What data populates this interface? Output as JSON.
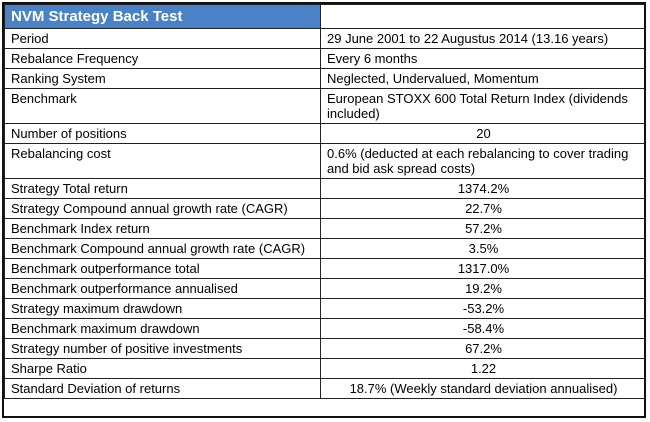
{
  "table": {
    "title": "NVM Strategy Back Test",
    "rows": [
      {
        "label": "Period",
        "value": "29 June 2001 to 22 Augustus 2014 (13.16 years)",
        "align": "left"
      },
      {
        "label": "Rebalance Frequency",
        "value": "Every 6 months",
        "align": "left"
      },
      {
        "label": "Ranking System",
        "value": "Neglected, Undervalued, Momentum",
        "align": "left"
      },
      {
        "label": "Benchmark",
        "value": "European STOXX 600 Total Return Index (dividends included)",
        "align": "left"
      },
      {
        "label": "Number of positions",
        "value": "20",
        "align": "center"
      },
      {
        "label": "Rebalancing cost",
        "value": "0.6% (deducted at each rebalancing to cover trading and bid ask spread costs)",
        "align": "left"
      },
      {
        "label": "Strategy Total return",
        "value": "1374.2%",
        "align": "center"
      },
      {
        "label": "Strategy Compound annual growth rate (CAGR)",
        "value": "22.7%",
        "align": "center"
      },
      {
        "label": "Benchmark Index return",
        "value": "57.2%",
        "align": "center"
      },
      {
        "label": "Benchmark Compound annual growth rate (CAGR)",
        "value": "3.5%",
        "align": "center"
      },
      {
        "label": "Benchmark outperformance total",
        "value": "1317.0%",
        "align": "center"
      },
      {
        "label": "Benchmark outperformance annualised",
        "value": "19.2%",
        "align": "center"
      },
      {
        "label": "Strategy maximum drawdown",
        "value": "-53.2%",
        "align": "center"
      },
      {
        "label": "Benchmark maximum drawdown",
        "value": "-58.4%",
        "align": "center"
      },
      {
        "label": "Strategy number of positive investments",
        "value": "67.2%",
        "align": "center"
      },
      {
        "label": "Sharpe Ratio",
        "value": "1.22",
        "align": "center"
      },
      {
        "label": "Standard Deviation of returns",
        "value": "18.7% (Weekly standard deviation annualised)",
        "align": "center"
      }
    ]
  }
}
